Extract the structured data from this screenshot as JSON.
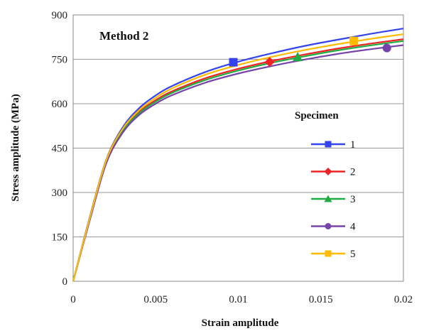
{
  "chart_data": {
    "type": "line",
    "title": "",
    "annotation": "Method 2",
    "xlabel": "Strain amplitude",
    "ylabel": "Stress amplitude (MPa)",
    "xlim": [
      0,
      0.02
    ],
    "ylim": [
      0,
      900
    ],
    "x_ticks": [
      "0",
      "0.005",
      "0.01",
      "0.015",
      "0.02"
    ],
    "y_ticks": [
      "0",
      "150",
      "300",
      "450",
      "600",
      "750",
      "900"
    ],
    "grid": "horizontal",
    "legend": {
      "title": "Specimen",
      "placement": "right"
    },
    "series": [
      {
        "name": "1",
        "color": "#3344ee",
        "marker": "square",
        "x": [
          0,
          0.001,
          0.002,
          0.003,
          0.004,
          0.005,
          0.006,
          0.008,
          0.01,
          0.012,
          0.014,
          0.016,
          0.018,
          0.02
        ],
        "y": [
          0,
          215,
          410,
          520,
          585,
          628,
          660,
          707,
          742,
          770,
          795,
          816,
          836,
          854
        ],
        "marker_at": [
          0.0097,
          740
        ]
      },
      {
        "name": "2",
        "color": "#ee2222",
        "marker": "diamond",
        "x": [
          0,
          0.001,
          0.002,
          0.003,
          0.004,
          0.005,
          0.006,
          0.008,
          0.01,
          0.012,
          0.014,
          0.016,
          0.018,
          0.02
        ],
        "y": [
          0,
          210,
          405,
          510,
          572,
          612,
          642,
          686,
          718,
          744,
          766,
          786,
          803,
          818
        ],
        "marker_at": [
          0.0119,
          741
        ]
      },
      {
        "name": "3",
        "color": "#22aa44",
        "marker": "triangle",
        "x": [
          0,
          0.001,
          0.002,
          0.003,
          0.004,
          0.005,
          0.006,
          0.008,
          0.01,
          0.012,
          0.014,
          0.016,
          0.018,
          0.02
        ],
        "y": [
          0,
          208,
          402,
          507,
          568,
          607,
          637,
          680,
          712,
          738,
          760,
          780,
          797,
          812
        ],
        "marker_at": [
          0.0136,
          758
        ]
      },
      {
        "name": "4",
        "color": "#7744aa",
        "marker": "circle",
        "x": [
          0,
          0.001,
          0.002,
          0.003,
          0.004,
          0.005,
          0.006,
          0.008,
          0.01,
          0.012,
          0.014,
          0.016,
          0.018,
          0.02
        ],
        "y": [
          0,
          205,
          398,
          502,
          562,
          600,
          629,
          671,
          702,
          727,
          749,
          768,
          784,
          798
        ],
        "marker_at": [
          0.019,
          788
        ]
      },
      {
        "name": "5",
        "color": "#ffbb00",
        "marker": "square",
        "x": [
          0,
          0.001,
          0.002,
          0.003,
          0.004,
          0.005,
          0.006,
          0.008,
          0.01,
          0.012,
          0.014,
          0.016,
          0.018,
          0.02
        ],
        "y": [
          0,
          212,
          408,
          515,
          578,
          620,
          652,
          698,
          731,
          758,
          781,
          801,
          819,
          835
        ],
        "marker_at": [
          0.017,
          812
        ]
      }
    ]
  }
}
